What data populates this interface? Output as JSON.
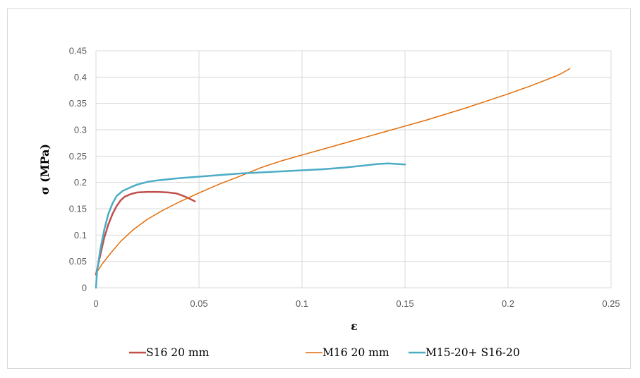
{
  "chart_data": {
    "type": "line",
    "title": "",
    "xlabel": "ε",
    "ylabel": "σ (MPa)",
    "xlim": [
      0,
      0.25
    ],
    "ylim": [
      0,
      0.45
    ],
    "x_ticks": [
      0,
      0.05,
      0.1,
      0.15,
      0.2,
      0.25
    ],
    "x_tick_labels": [
      "0",
      "0.05",
      "0.1",
      "0.15",
      "0.2",
      "0.25"
    ],
    "y_ticks": [
      0,
      0.05,
      0.1,
      0.15,
      0.2,
      0.25,
      0.3,
      0.35,
      0.4,
      0.45
    ],
    "y_tick_labels": [
      "0",
      "0.05",
      "0.1",
      "0.15",
      "0.2",
      "0.25",
      "0.3",
      "0.35",
      "0.4",
      "0.45"
    ],
    "grid": true,
    "legend_position": "bottom",
    "series": [
      {
        "name": "S16 20 mm",
        "color": "#c0504d",
        "points": [
          [
            0,
            0.025
          ],
          [
            0.002,
            0.06
          ],
          [
            0.004,
            0.095
          ],
          [
            0.006,
            0.12
          ],
          [
            0.008,
            0.14
          ],
          [
            0.01,
            0.155
          ],
          [
            0.012,
            0.166
          ],
          [
            0.014,
            0.173
          ],
          [
            0.017,
            0.178
          ],
          [
            0.02,
            0.181
          ],
          [
            0.025,
            0.182
          ],
          [
            0.03,
            0.182
          ],
          [
            0.035,
            0.181
          ],
          [
            0.039,
            0.179
          ],
          [
            0.042,
            0.175
          ],
          [
            0.045,
            0.17
          ],
          [
            0.048,
            0.164
          ]
        ]
      },
      {
        "name": "M16 20 mm",
        "color": "#e36c09",
        "points": [
          [
            0,
            0.027
          ],
          [
            0.003,
            0.045
          ],
          [
            0.007,
            0.065
          ],
          [
            0.012,
            0.088
          ],
          [
            0.018,
            0.11
          ],
          [
            0.025,
            0.13
          ],
          [
            0.032,
            0.146
          ],
          [
            0.04,
            0.162
          ],
          [
            0.05,
            0.18
          ],
          [
            0.06,
            0.197
          ],
          [
            0.07,
            0.212
          ],
          [
            0.08,
            0.228
          ],
          [
            0.09,
            0.241
          ],
          [
            0.1,
            0.252
          ],
          [
            0.11,
            0.263
          ],
          [
            0.12,
            0.274
          ],
          [
            0.13,
            0.285
          ],
          [
            0.14,
            0.296
          ],
          [
            0.15,
            0.307
          ],
          [
            0.16,
            0.318
          ],
          [
            0.17,
            0.33
          ],
          [
            0.18,
            0.342
          ],
          [
            0.19,
            0.355
          ],
          [
            0.2,
            0.368
          ],
          [
            0.21,
            0.382
          ],
          [
            0.22,
            0.397
          ],
          [
            0.225,
            0.405
          ],
          [
            0.23,
            0.416
          ]
        ]
      },
      {
        "name": "M15-20+ S16-20",
        "color": "#4bacc6",
        "points": [
          [
            0,
            0.0
          ],
          [
            0.0005,
            0.03
          ],
          [
            0.002,
            0.07
          ],
          [
            0.004,
            0.11
          ],
          [
            0.006,
            0.14
          ],
          [
            0.008,
            0.16
          ],
          [
            0.01,
            0.174
          ],
          [
            0.013,
            0.184
          ],
          [
            0.017,
            0.191
          ],
          [
            0.02,
            0.196
          ],
          [
            0.025,
            0.201
          ],
          [
            0.03,
            0.204
          ],
          [
            0.04,
            0.208
          ],
          [
            0.05,
            0.211
          ],
          [
            0.06,
            0.214
          ],
          [
            0.07,
            0.217
          ],
          [
            0.08,
            0.219
          ],
          [
            0.09,
            0.221
          ],
          [
            0.1,
            0.223
          ],
          [
            0.11,
            0.225
          ],
          [
            0.12,
            0.228
          ],
          [
            0.13,
            0.232
          ],
          [
            0.137,
            0.235
          ],
          [
            0.142,
            0.236
          ],
          [
            0.146,
            0.235
          ],
          [
            0.15,
            0.234
          ]
        ]
      }
    ]
  }
}
